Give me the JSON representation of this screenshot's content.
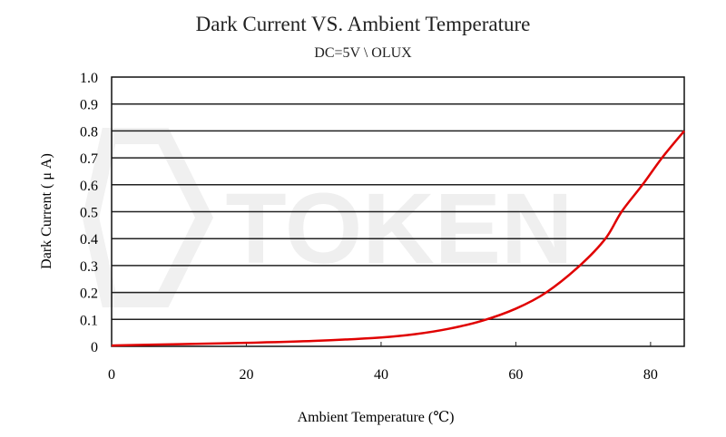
{
  "chart_data": {
    "type": "line",
    "title": "Dark Current VS. Ambient Temperature",
    "subtitle": "DC=5V \\ OLUX",
    "xlabel": "Ambient Temperature (℃)",
    "ylabel": "Dark Current ( μ A)",
    "xlim": [
      0,
      85
    ],
    "ylim": [
      0,
      1.0
    ],
    "xticks": [
      "0",
      "20",
      "40",
      "60",
      "80"
    ],
    "yticks": [
      "0",
      "0.1",
      "0.2",
      "0.3",
      "0.4",
      "0.5",
      "0.6",
      "0.7",
      "0.8",
      "0.9",
      "1.0"
    ],
    "grid": "horizontal",
    "legend": "none",
    "series": [
      {
        "name": "Dark Current",
        "color": "#e00000",
        "x": [
          0,
          10,
          20,
          30,
          40,
          45,
          50,
          55,
          60,
          64.5,
          69.5,
          73.3,
          75.7,
          78.8,
          81.7,
          85
        ],
        "y": [
          0.003,
          0.008,
          0.013,
          0.02,
          0.033,
          0.045,
          0.065,
          0.095,
          0.14,
          0.2,
          0.3,
          0.4,
          0.5,
          0.6,
          0.7,
          0.8
        ]
      }
    ],
    "watermark": "TOKEN"
  }
}
